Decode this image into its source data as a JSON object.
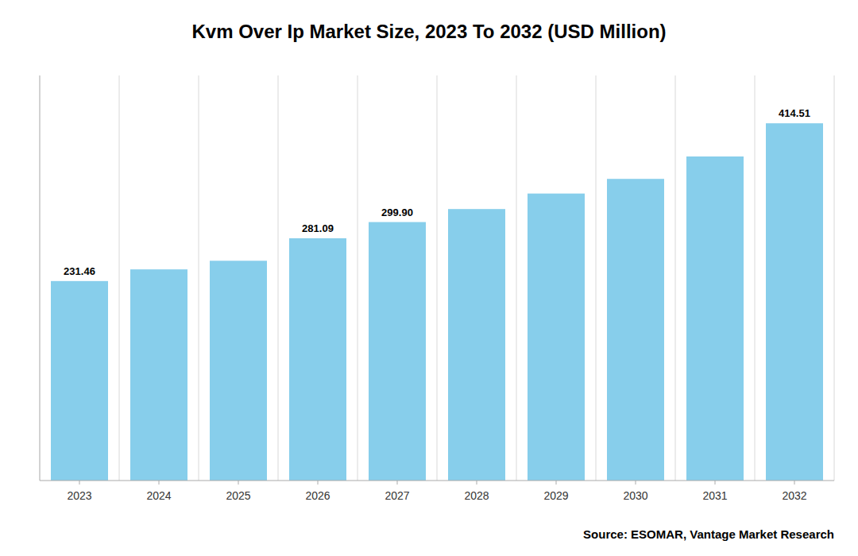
{
  "chart_data": {
    "type": "bar",
    "title": "Kvm Over Ip Market Size, 2023 To 2032 (USD Million)",
    "categories": [
      "2023",
      "2024",
      "2025",
      "2026",
      "2027",
      "2028",
      "2029",
      "2030",
      "2031",
      "2032"
    ],
    "values": [
      231.46,
      245.0,
      255.0,
      281.09,
      299.9,
      315.0,
      333.0,
      350.0,
      376.0,
      414.51
    ],
    "data_labels": true,
    "value_labels": [
      "231.46",
      null,
      null,
      "281.09",
      "299.90",
      null,
      null,
      null,
      null,
      "414.51"
    ],
    "color": "#87CEEB",
    "ylim": [
      0,
      470
    ],
    "grid": true,
    "tick_labels": "x",
    "annotations": [
      {
        "text": "Source: ESOMAR, Vantage Market Research"
      }
    ]
  }
}
